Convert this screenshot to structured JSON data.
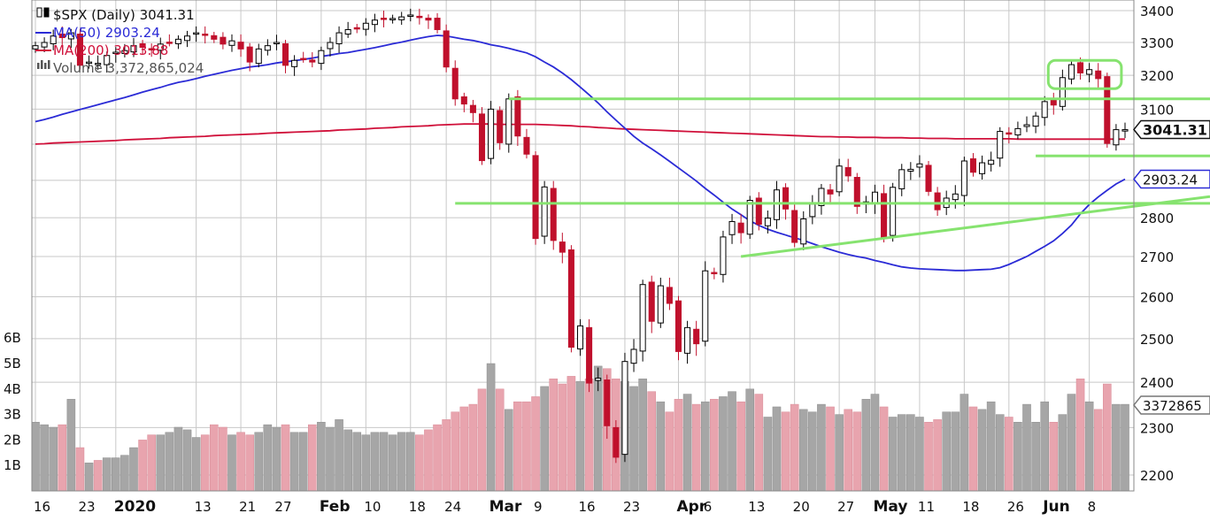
{
  "chart_data": {
    "type": "candlestick",
    "title": "$SPX (Daily) 3041.31",
    "legend": [
      {
        "name": "$SPX (Daily) 3041.31",
        "color": "#111111"
      },
      {
        "name": "MA(50) 2903.24",
        "color": "#2b2bd6"
      },
      {
        "name": "MA(200) 3013.88",
        "color": "#d0103a"
      },
      {
        "name": "Volume 3,372,865,024",
        "color": "#555555"
      }
    ],
    "ylim": [
      2160,
      3420
    ],
    "y_ticks": [
      3400,
      3300,
      3200,
      3100,
      3000,
      2900,
      2800,
      2700,
      2600,
      2500,
      2400,
      2300,
      2200
    ],
    "y_tick_labels": [
      "3400",
      "3300",
      "3200",
      "3100",
      "",
      "",
      "2800",
      "2700",
      "2600",
      "2500",
      "2400",
      "2300",
      "2200"
    ],
    "volume_ticks": [
      "6B",
      "5B",
      "4B",
      "3B",
      "2B",
      "1B"
    ],
    "volume_tick_values": [
      6,
      5,
      4,
      3,
      2,
      1
    ],
    "x_tick_labels": [
      {
        "label": "16",
        "bold": false,
        "i": 0
      },
      {
        "label": "23",
        "bold": false,
        "i": 5
      },
      {
        "label": "2020",
        "bold": true,
        "i": 9
      },
      {
        "label": "13",
        "bold": false,
        "i": 18
      },
      {
        "label": "21",
        "bold": false,
        "i": 23
      },
      {
        "label": "27",
        "bold": false,
        "i": 27
      },
      {
        "label": "Feb",
        "bold": true,
        "i": 32
      },
      {
        "label": "10",
        "bold": false,
        "i": 37
      },
      {
        "label": "18",
        "bold": false,
        "i": 42
      },
      {
        "label": "24",
        "bold": false,
        "i": 46
      },
      {
        "label": "Mar",
        "bold": true,
        "i": 51
      },
      {
        "label": "9",
        "bold": false,
        "i": 56
      },
      {
        "label": "16",
        "bold": false,
        "i": 61
      },
      {
        "label": "23",
        "bold": false,
        "i": 66
      },
      {
        "label": "Apr",
        "bold": true,
        "i": 72
      },
      {
        "label": "6",
        "bold": false,
        "i": 75
      },
      {
        "label": "13",
        "bold": false,
        "i": 80
      },
      {
        "label": "20",
        "bold": false,
        "i": 85
      },
      {
        "label": "27",
        "bold": false,
        "i": 90
      },
      {
        "label": "May",
        "bold": true,
        "i": 94
      },
      {
        "label": "11",
        "bold": false,
        "i": 99
      },
      {
        "label": "18",
        "bold": false,
        "i": 104
      },
      {
        "label": "26",
        "bold": false,
        "i": 109
      },
      {
        "label": "Jun",
        "bold": true,
        "i": 113
      },
      {
        "label": "8",
        "bold": false,
        "i": 118
      }
    ],
    "price_close_series": [
      3290,
      3300,
      3320,
      3315,
      3330,
      3230,
      3240,
      3236,
      3260,
      3270,
      3275,
      3290,
      3285,
      3280,
      3295,
      3300,
      3310,
      3320,
      3330,
      3325,
      3310,
      3295,
      3305,
      3280,
      3240,
      3280,
      3290,
      3300,
      3230,
      3245,
      3250,
      3240,
      3275,
      3300,
      3330,
      3340,
      3345,
      3360,
      3370,
      3375,
      3375,
      3380,
      3386,
      3380,
      3370,
      3340,
      3225,
      3130,
      3115,
      3090,
      2954,
      3100,
      3004,
      3130,
      3023,
      2972,
      2746,
      2882,
      2741,
      2711,
      2480,
      2530,
      2398,
      2409,
      2304,
      2237,
      2447,
      2475,
      2630,
      2541,
      2627,
      2584,
      2470,
      2526,
      2488,
      2664,
      2659,
      2750,
      2790,
      2761,
      2846,
      2783,
      2799,
      2874,
      2823,
      2736,
      2797,
      2836,
      2878,
      2863,
      2939,
      2912,
      2830,
      2842,
      2868,
      2748,
      2881,
      2929,
      2930,
      2945,
      2870,
      2821,
      2852,
      2863,
      2953,
      2922,
      2948,
      2955,
      3036,
      3030,
      3044,
      3055,
      3080,
      3122,
      3112,
      3193,
      3232,
      3207,
      3217,
      3190,
      3002,
      3041,
      3041
    ],
    "ma50_series": [
      3064,
      3070,
      3077,
      3085,
      3092,
      3099,
      3106,
      3113,
      3120,
      3127,
      3134,
      3142,
      3150,
      3157,
      3164,
      3172,
      3179,
      3184,
      3190,
      3197,
      3203,
      3209,
      3215,
      3220,
      3225,
      3228,
      3232,
      3237,
      3241,
      3244,
      3248,
      3252,
      3257,
      3261,
      3266,
      3269,
      3274,
      3279,
      3284,
      3290,
      3296,
      3301,
      3307,
      3313,
      3318,
      3322,
      3320,
      3315,
      3310,
      3306,
      3300,
      3293,
      3288,
      3282,
      3275,
      3268,
      3256,
      3240,
      3225,
      3207,
      3187,
      3165,
      3142,
      3118,
      3092,
      3068,
      3045,
      3022,
      3003,
      2987,
      2970,
      2952,
      2934,
      2916,
      2898,
      2878,
      2860,
      2841,
      2823,
      2808,
      2792,
      2780,
      2770,
      2762,
      2755,
      2748,
      2741,
      2733,
      2725,
      2718,
      2711,
      2705,
      2700,
      2696,
      2690,
      2685,
      2679,
      2674,
      2671,
      2669,
      2668,
      2667,
      2666,
      2665,
      2665,
      2666,
      2667,
      2668,
      2672,
      2680,
      2690,
      2700,
      2713,
      2726,
      2740,
      2759,
      2781,
      2810,
      2835,
      2855,
      2873,
      2890,
      2903
    ],
    "ma200_series": [
      3000,
      3001,
      3003,
      3004,
      3005,
      3006,
      3007,
      3008,
      3009,
      3010,
      3012,
      3013,
      3014,
      3015,
      3016,
      3018,
      3019,
      3020,
      3021,
      3022,
      3024,
      3025,
      3026,
      3027,
      3028,
      3029,
      3031,
      3032,
      3033,
      3034,
      3035,
      3036,
      3037,
      3038,
      3040,
      3041,
      3042,
      3043,
      3045,
      3046,
      3047,
      3049,
      3050,
      3051,
      3052,
      3054,
      3055,
      3056,
      3057,
      3057,
      3057,
      3057,
      3056,
      3056,
      3056,
      3056,
      3056,
      3055,
      3054,
      3053,
      3052,
      3050,
      3049,
      3047,
      3046,
      3044,
      3043,
      3042,
      3041,
      3040,
      3039,
      3038,
      3037,
      3036,
      3035,
      3034,
      3033,
      3032,
      3031,
      3030,
      3029,
      3028,
      3027,
      3026,
      3025,
      3024,
      3023,
      3022,
      3021,
      3021,
      3020,
      3020,
      3019,
      3019,
      3019,
      3018,
      3018,
      3018,
      3017,
      3017,
      3016,
      3016,
      3016,
      3015,
      3015,
      3015,
      3015,
      3015,
      3015,
      3015,
      3014,
      3014,
      3014,
      3014,
      3014,
      3014,
      3014,
      3014,
      3014,
      3014,
      3014,
      3014,
      3014
    ],
    "volume_series_billions": [
      2.7,
      2.6,
      2.5,
      2.6,
      3.6,
      1.7,
      1.1,
      1.2,
      1.3,
      1.3,
      1.4,
      1.7,
      2.0,
      2.2,
      2.2,
      2.3,
      2.5,
      2.4,
      2.1,
      2.2,
      2.6,
      2.5,
      2.2,
      2.3,
      2.2,
      2.3,
      2.6,
      2.5,
      2.6,
      2.3,
      2.3,
      2.6,
      2.7,
      2.5,
      2.8,
      2.4,
      2.3,
      2.2,
      2.3,
      2.3,
      2.2,
      2.3,
      2.3,
      2.2,
      2.4,
      2.6,
      2.8,
      3.1,
      3.3,
      3.4,
      4.0,
      5.0,
      4.0,
      3.2,
      3.5,
      3.5,
      3.7,
      4.1,
      4.4,
      4.2,
      4.5,
      4.3,
      4.4,
      4.9,
      4.8,
      4.4,
      4.3,
      4.1,
      4.4,
      3.9,
      3.5,
      3.1,
      3.6,
      3.8,
      3.4,
      3.5,
      3.6,
      3.7,
      3.9,
      3.5,
      4.0,
      3.8,
      2.9,
      3.3,
      3.1,
      3.4,
      3.2,
      3.1,
      3.4,
      3.3,
      3.0,
      3.2,
      3.1,
      3.6,
      3.8,
      3.3,
      2.9,
      3.0,
      3.0,
      2.9,
      2.7,
      2.8,
      3.1,
      3.1,
      3.8,
      3.3,
      3.2,
      3.5,
      3.0,
      2.9,
      2.7,
      3.4,
      2.7,
      3.5,
      2.7,
      3.0,
      3.8,
      4.4,
      3.5,
      3.2,
      4.2,
      3.4,
      3.4
    ],
    "trendlines": [
      {
        "name": "resistance-3130",
        "from_i": 53,
        "to_i": 122,
        "y1": 3130,
        "y2": 3130
      },
      {
        "name": "support-2840",
        "from_i": 47,
        "to_i": 122,
        "y1": 2838,
        "y2": 2838
      },
      {
        "name": "support-2965",
        "from_i": 112,
        "to_i": 122,
        "y1": 2967,
        "y2": 2967
      },
      {
        "name": "rising-support",
        "from_i": 79,
        "to_i": 122,
        "y1": 2700,
        "y2": 2830
      }
    ],
    "price_box": {
      "value": "3041.31"
    },
    "ma50_box": {
      "value": "2903.24"
    },
    "volume_box": {
      "value": "3372865"
    }
  }
}
